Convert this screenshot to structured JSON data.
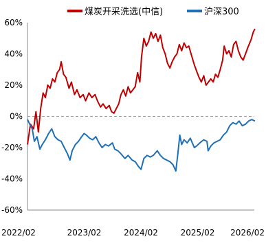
{
  "chart_data": {
    "type": "line",
    "title": "",
    "xlabel": "",
    "ylabel": "",
    "ylim": [
      -60,
      60
    ],
    "yticks": [
      60,
      40,
      20,
      0,
      -20,
      -40,
      -60
    ],
    "ytick_labels": [
      "60%",
      "40%",
      "20%",
      "0%",
      "-20%",
      "-40%",
      "-60%"
    ],
    "xlim": [
      "2022-02",
      "2026-02"
    ],
    "xtick_labels": [
      "2022/02",
      "2023/02",
      "2024/02",
      "2025/02",
      "2026/02"
    ],
    "grid": false,
    "legend_position": "top",
    "series": [
      {
        "name": "煤炭开采洗选(中信)",
        "color": "#c00000",
        "points": [
          [
            "2022-02-01",
            -18
          ],
          [
            "2022-02-20",
            -5
          ],
          [
            "2022-03-10",
            -8
          ],
          [
            "2022-03-25",
            3
          ],
          [
            "2022-04-10",
            -10
          ],
          [
            "2022-04-25",
            5
          ],
          [
            "2022-05-10",
            15
          ],
          [
            "2022-05-25",
            12
          ],
          [
            "2022-06-10",
            20
          ],
          [
            "2022-06-25",
            18
          ],
          [
            "2022-07-10",
            24
          ],
          [
            "2022-07-25",
            22
          ],
          [
            "2022-08-10",
            28
          ],
          [
            "2022-08-25",
            30
          ],
          [
            "2022-09-05",
            35
          ],
          [
            "2022-09-20",
            27
          ],
          [
            "2022-10-05",
            25
          ],
          [
            "2022-10-25",
            18
          ],
          [
            "2022-11-10",
            22
          ],
          [
            "2022-11-30",
            14
          ],
          [
            "2022-12-15",
            17
          ],
          [
            "2023-01-05",
            12
          ],
          [
            "2023-01-25",
            14
          ],
          [
            "2023-02-10",
            10
          ],
          [
            "2023-03-01",
            15
          ],
          [
            "2023-03-20",
            12
          ],
          [
            "2023-04-10",
            14
          ],
          [
            "2023-04-25",
            10
          ],
          [
            "2023-05-15",
            6
          ],
          [
            "2023-06-01",
            8
          ],
          [
            "2023-06-20",
            5
          ],
          [
            "2023-07-10",
            7
          ],
          [
            "2023-07-25",
            3
          ],
          [
            "2023-08-10",
            2
          ],
          [
            "2023-08-25",
            5
          ],
          [
            "2023-09-10",
            8
          ],
          [
            "2023-09-25",
            14
          ],
          [
            "2023-10-10",
            17
          ],
          [
            "2023-10-25",
            13
          ],
          [
            "2023-11-10",
            19
          ],
          [
            "2023-11-25",
            15
          ],
          [
            "2023-12-10",
            17
          ],
          [
            "2023-12-25",
            19
          ],
          [
            "2024-01-10",
            28
          ],
          [
            "2024-01-25",
            22
          ],
          [
            "2024-02-05",
            38
          ],
          [
            "2024-02-20",
            50
          ],
          [
            "2024-03-05",
            45
          ],
          [
            "2024-03-20",
            48
          ],
          [
            "2024-04-05",
            54
          ],
          [
            "2024-04-20",
            50
          ],
          [
            "2024-05-05",
            53
          ],
          [
            "2024-05-20",
            48
          ],
          [
            "2024-06-05",
            52
          ],
          [
            "2024-06-20",
            44
          ],
          [
            "2024-07-05",
            40
          ],
          [
            "2024-07-20",
            34
          ],
          [
            "2024-08-05",
            31
          ],
          [
            "2024-08-20",
            35
          ],
          [
            "2024-09-05",
            38
          ],
          [
            "2024-09-20",
            40
          ],
          [
            "2024-10-05",
            46
          ],
          [
            "2024-10-20",
            42
          ],
          [
            "2024-11-05",
            47
          ],
          [
            "2024-11-20",
            44
          ],
          [
            "2024-12-05",
            45
          ],
          [
            "2024-12-20",
            40
          ],
          [
            "2025-01-10",
            33
          ],
          [
            "2025-01-25",
            29
          ],
          [
            "2025-02-10",
            25
          ],
          [
            "2025-02-25",
            22
          ],
          [
            "2025-03-10",
            26
          ],
          [
            "2025-03-25",
            20
          ],
          [
            "2025-04-10",
            22
          ],
          [
            "2025-04-25",
            24
          ],
          [
            "2025-05-10",
            22
          ],
          [
            "2025-05-25",
            27
          ],
          [
            "2025-06-10",
            25
          ],
          [
            "2025-06-25",
            30
          ],
          [
            "2025-07-10",
            36
          ],
          [
            "2025-07-20",
            45
          ],
          [
            "2025-08-05",
            40
          ],
          [
            "2025-08-20",
            42
          ],
          [
            "2025-09-05",
            38
          ],
          [
            "2025-09-20",
            46
          ],
          [
            "2025-10-05",
            48
          ],
          [
            "2025-10-20",
            42
          ],
          [
            "2025-11-05",
            38
          ],
          [
            "2025-11-20",
            36
          ],
          [
            "2025-12-05",
            40
          ],
          [
            "2025-12-20",
            44
          ],
          [
            "2026-01-10",
            49
          ],
          [
            "2026-01-25",
            54
          ],
          [
            "2026-02-05",
            56
          ]
        ]
      },
      {
        "name": "沪深300",
        "color": "#1f6fb5",
        "points": [
          [
            "2022-02-01",
            -2
          ],
          [
            "2022-02-15",
            -5
          ],
          [
            "2022-03-01",
            -8
          ],
          [
            "2022-03-15",
            -16
          ],
          [
            "2022-04-01",
            -13
          ],
          [
            "2022-04-20",
            -21
          ],
          [
            "2022-05-05",
            -18
          ],
          [
            "2022-05-25",
            -15
          ],
          [
            "2022-06-15",
            -11
          ],
          [
            "2022-07-05",
            -8
          ],
          [
            "2022-07-25",
            -13
          ],
          [
            "2022-08-15",
            -15
          ],
          [
            "2022-09-05",
            -16
          ],
          [
            "2022-09-25",
            -20
          ],
          [
            "2022-10-15",
            -24
          ],
          [
            "2022-10-31",
            -28
          ],
          [
            "2022-11-15",
            -22
          ],
          [
            "2022-12-05",
            -18
          ],
          [
            "2022-12-25",
            -16
          ],
          [
            "2023-01-15",
            -13
          ],
          [
            "2023-01-31",
            -11
          ],
          [
            "2023-02-15",
            -12
          ],
          [
            "2023-03-05",
            -14
          ],
          [
            "2023-03-25",
            -15
          ],
          [
            "2023-04-15",
            -13
          ],
          [
            "2023-05-05",
            -17
          ],
          [
            "2023-05-25",
            -20
          ],
          [
            "2023-06-15",
            -18
          ],
          [
            "2023-07-05",
            -19
          ],
          [
            "2023-07-31",
            -17
          ],
          [
            "2023-08-15",
            -21
          ],
          [
            "2023-09-05",
            -22
          ],
          [
            "2023-09-25",
            -24
          ],
          [
            "2023-10-20",
            -27
          ],
          [
            "2023-11-10",
            -25
          ],
          [
            "2023-12-05",
            -28
          ],
          [
            "2023-12-25",
            -29
          ],
          [
            "2024-01-15",
            -32
          ],
          [
            "2024-02-02",
            -34
          ],
          [
            "2024-02-20",
            -27
          ],
          [
            "2024-03-10",
            -25
          ],
          [
            "2024-03-31",
            -26
          ],
          [
            "2024-04-20",
            -25
          ],
          [
            "2024-05-15",
            -22
          ],
          [
            "2024-06-05",
            -25
          ],
          [
            "2024-06-25",
            -27
          ],
          [
            "2024-07-15",
            -28
          ],
          [
            "2024-08-05",
            -29
          ],
          [
            "2024-08-25",
            -31
          ],
          [
            "2024-09-13",
            -35
          ],
          [
            "2024-09-25",
            -25
          ],
          [
            "2024-10-08",
            -12
          ],
          [
            "2024-10-20",
            -18
          ],
          [
            "2024-11-05",
            -15
          ],
          [
            "2024-11-25",
            -17
          ],
          [
            "2024-12-15",
            -14
          ],
          [
            "2025-01-10",
            -20
          ],
          [
            "2025-01-25",
            -19
          ],
          [
            "2025-02-15",
            -17
          ],
          [
            "2025-03-10",
            -15
          ],
          [
            "2025-03-31",
            -16
          ],
          [
            "2025-04-08",
            -22
          ],
          [
            "2025-04-25",
            -19
          ],
          [
            "2025-05-15",
            -17
          ],
          [
            "2025-06-05",
            -16
          ],
          [
            "2025-06-25",
            -15
          ],
          [
            "2025-07-15",
            -12
          ],
          [
            "2025-08-05",
            -10
          ],
          [
            "2025-08-25",
            -6
          ],
          [
            "2025-09-15",
            -4
          ],
          [
            "2025-10-05",
            -5
          ],
          [
            "2025-10-25",
            -3
          ],
          [
            "2025-11-15",
            -6
          ],
          [
            "2025-12-05",
            -5
          ],
          [
            "2025-12-25",
            -3
          ],
          [
            "2026-01-15",
            -2
          ],
          [
            "2026-02-05",
            -3
          ]
        ]
      }
    ]
  }
}
